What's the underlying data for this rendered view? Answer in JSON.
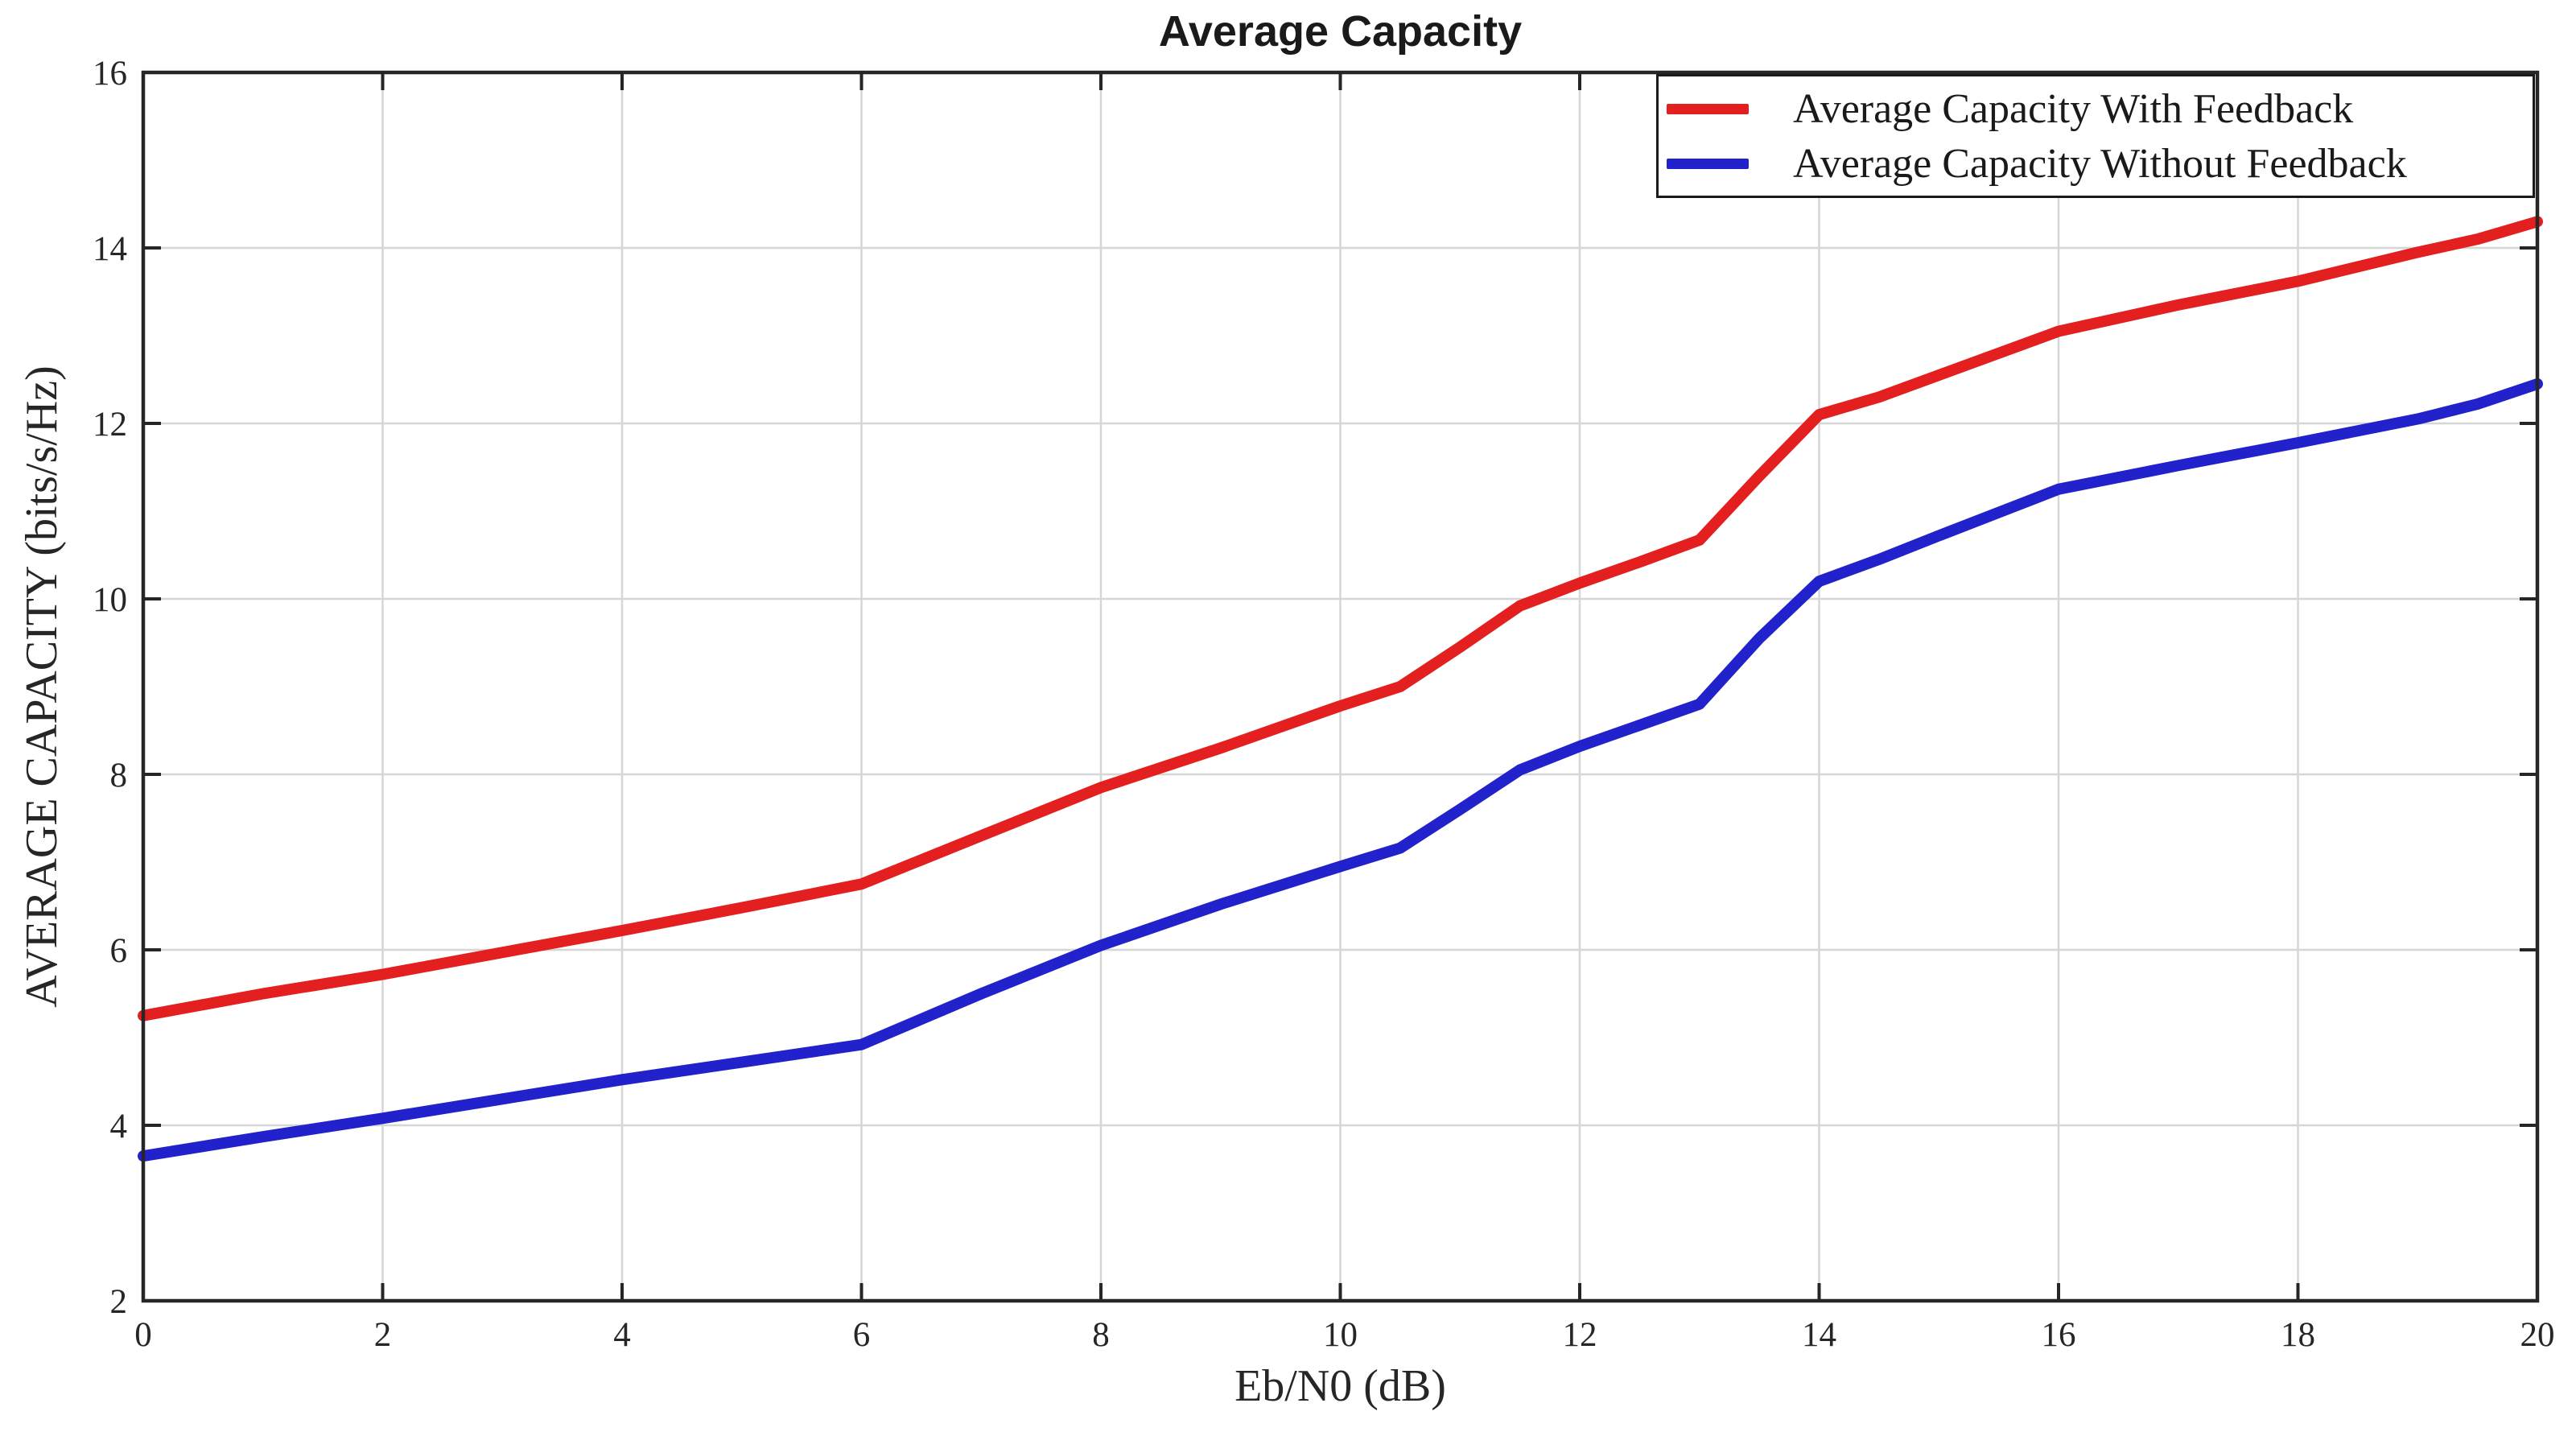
{
  "chart_data": {
    "type": "line",
    "title": "Average Capacity",
    "xlabel": "Eb/N0 (dB)",
    "ylabel": "AVERAGE CAPACITY (bits/s/Hz)",
    "xlim": [
      0,
      20
    ],
    "ylim": [
      2,
      16
    ],
    "xticks": [
      0,
      2,
      4,
      6,
      8,
      10,
      12,
      14,
      16,
      18,
      20
    ],
    "yticks": [
      2,
      4,
      6,
      8,
      10,
      12,
      14,
      16
    ],
    "grid": true,
    "legend_position": "top-right",
    "x": [
      0,
      1,
      2,
      3,
      4,
      5,
      6,
      7,
      8,
      9,
      10,
      10.5,
      11,
      11.5,
      12,
      12.5,
      13,
      13.5,
      14,
      14.5,
      15,
      16,
      17,
      18,
      19,
      19.5,
      20
    ],
    "series": [
      {
        "name": "Average Capacity With Feedback",
        "color": "#e3201f",
        "values": [
          5.25,
          5.5,
          5.72,
          5.97,
          6.22,
          6.48,
          6.75,
          7.3,
          7.85,
          8.3,
          8.78,
          9.0,
          9.45,
          9.92,
          10.18,
          10.42,
          10.67,
          11.4,
          12.1,
          12.3,
          12.55,
          13.05,
          13.35,
          13.62,
          13.95,
          14.1,
          14.3
        ]
      },
      {
        "name": "Average Capacity Without Feedback",
        "color": "#2222cc",
        "values": [
          3.65,
          3.87,
          4.08,
          4.3,
          4.52,
          4.72,
          4.92,
          5.5,
          6.05,
          6.52,
          6.95,
          7.16,
          7.6,
          8.05,
          8.32,
          8.56,
          8.8,
          9.55,
          10.2,
          10.45,
          10.72,
          11.25,
          11.52,
          11.78,
          12.05,
          12.22,
          12.45
        ]
      }
    ],
    "colors": {
      "grid": "#d6d6d6",
      "axis": "#262626",
      "tick_text": "#262626",
      "background": "#ffffff"
    }
  }
}
